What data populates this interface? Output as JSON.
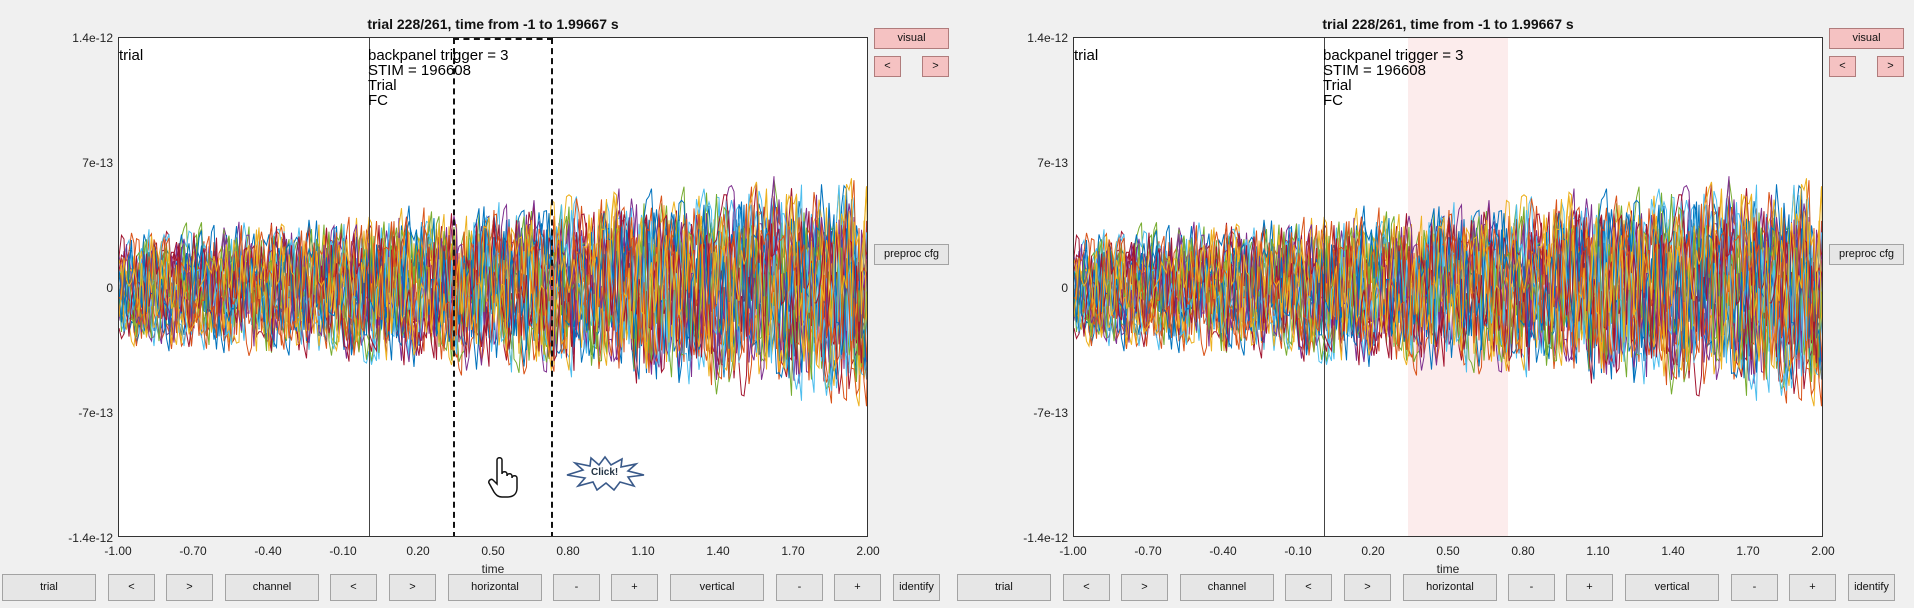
{
  "title": "trial 228/261, time from -1 to 1.99667 s",
  "y_ticks": [
    "1.4e-12",
    "7e-13",
    "0",
    "-7e-13",
    "-1.4e-12"
  ],
  "x_ticks": [
    "-1.00",
    "-0.70",
    "-0.40",
    "-0.10",
    "0.20",
    "0.50",
    "0.80",
    "1.10",
    "1.40",
    "1.70",
    "2.00"
  ],
  "x_axis_label": "time",
  "annotations": {
    "trial_label": "trial",
    "event_lines": [
      "backpanel trigger = 3",
      "STIM = 196608",
      "Trial",
      "FC"
    ]
  },
  "side_buttons": {
    "visual": "visual",
    "prev": "<",
    "next": ">",
    "preproc_cfg": "preproc cfg"
  },
  "bottom_buttons": {
    "trial": "trial",
    "trial_prev": "<",
    "trial_next": ">",
    "channel": "channel",
    "channel_prev": "<",
    "channel_next": ">",
    "horizontal": "horizontal",
    "horizontal_minus": "-",
    "horizontal_plus": "+",
    "vertical": "vertical",
    "vertical_minus": "-",
    "vertical_plus": "+",
    "identify": "identify"
  },
  "click_badge": "Click!",
  "colors": {
    "button_pink": "#f5c2c2",
    "selection_fill": "#fadcdc",
    "series": [
      "#0072bd",
      "#d95319",
      "#edb120",
      "#7e2f8e",
      "#77ac30",
      "#4dbeee",
      "#a2142f"
    ]
  }
}
